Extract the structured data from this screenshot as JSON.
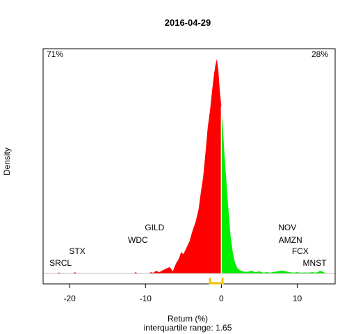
{
  "chart_data": {
    "type": "area",
    "title": "2016-04-29",
    "xlabel": "Return (%)",
    "ylabel": "Density",
    "subtitle": "interquartile range: 1.65",
    "xlim": [
      -23.5,
      15.0
    ],
    "x_ticks": [
      -20,
      -10,
      0,
      10
    ],
    "negative_share": "71%",
    "positive_share": "28%",
    "colors": {
      "negative": "#ff0000",
      "positive": "#00ee00",
      "negative_text": "#ff0000",
      "positive_text": "#008800",
      "iqr_bracket": "#f0c000",
      "axis": "#000000",
      "baseline": "#bbbbbb"
    },
    "density": {
      "x": [
        -23.0,
        -21.7,
        -21.4,
        -21.1,
        -20.0,
        -19.6,
        -19.3,
        -19.0,
        -12.0,
        -11.6,
        -11.3,
        -11.0,
        -10.0,
        -9.6,
        -9.3,
        -9.0,
        -8.6,
        -8.2,
        -7.6,
        -7.2,
        -6.8,
        -6.4,
        -6.0,
        -5.6,
        -5.3,
        -5.0,
        -4.6,
        -4.2,
        -3.8,
        -3.4,
        -3.0,
        -2.7,
        -2.4,
        -2.1,
        -1.8,
        -1.5,
        -1.2,
        -1.0,
        -0.8,
        -0.6,
        -0.4,
        -0.2,
        0.0,
        0.2,
        0.4,
        0.6,
        0.8,
        1.0,
        1.2,
        1.5,
        1.8,
        2.1,
        2.5,
        3.0,
        3.5,
        4.0,
        4.5,
        5.0,
        5.5,
        6.0,
        6.5,
        7.0,
        7.5,
        8.0,
        8.5,
        9.0,
        9.5,
        10.0,
        10.5,
        11.0,
        11.5,
        12.0,
        12.5,
        13.0,
        13.4,
        13.8,
        14.5
      ],
      "y": [
        0.0,
        0.0,
        0.005,
        0.0,
        0.0,
        0.0,
        0.006,
        0.0,
        0.0,
        0.0,
        0.006,
        0.0,
        0.0,
        0.0,
        0.006,
        0.003,
        0.012,
        0.006,
        0.017,
        0.024,
        0.03,
        0.01,
        0.045,
        0.07,
        0.1,
        0.09,
        0.12,
        0.15,
        0.2,
        0.24,
        0.3,
        0.38,
        0.45,
        0.56,
        0.68,
        0.76,
        0.86,
        0.92,
        0.97,
        1.0,
        0.95,
        0.85,
        0.78,
        0.68,
        0.56,
        0.46,
        0.36,
        0.27,
        0.18,
        0.1,
        0.05,
        0.025,
        0.014,
        0.008,
        0.008,
        0.012,
        0.006,
        0.01,
        0.004,
        0.006,
        0.004,
        0.008,
        0.01,
        0.014,
        0.01,
        0.006,
        0.004,
        0.006,
        0.004,
        0.005,
        0.004,
        0.006,
        0.004,
        0.012,
        0.008,
        0.0,
        0.0
      ]
    },
    "tickers": [
      {
        "name": "SRCL",
        "x": -21.2,
        "row": 0
      },
      {
        "name": "STX",
        "x": -19.0,
        "row": 1
      },
      {
        "name": "WDC",
        "x": -11.0,
        "row": 2
      },
      {
        "name": "GILD",
        "x": -8.8,
        "row": 3
      },
      {
        "name": "NOV",
        "x": 8.7,
        "row": 3
      },
      {
        "name": "AMZN",
        "x": 9.1,
        "row": 2
      },
      {
        "name": "FCX",
        "x": 10.4,
        "row": 1
      },
      {
        "name": "MNST",
        "x": 12.3,
        "row": 0
      }
    ],
    "iqr": [
      -1.5,
      0.15
    ],
    "grid": false,
    "legend": "none"
  }
}
